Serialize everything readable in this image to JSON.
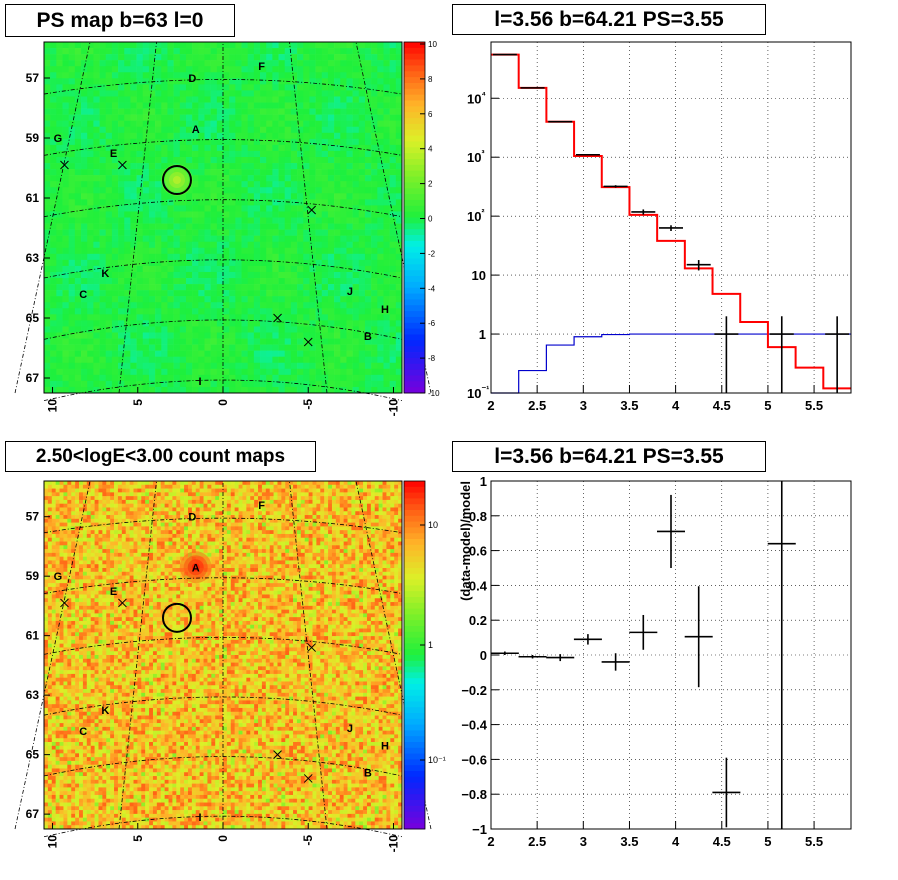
{
  "panels": {
    "ps_map": {
      "title": "PS map b=63 l=0",
      "palette": "rainbow",
      "colorbar_ticks": [
        "10",
        "8",
        "6",
        "4",
        "2",
        "0",
        "-2",
        "-4",
        "-6",
        "-8",
        "-10"
      ],
      "y_ticks": [
        "67",
        "65",
        "63",
        "61",
        "59",
        "57"
      ],
      "x_ticks": [
        "10",
        "5",
        "0",
        "-5",
        "-10"
      ],
      "source_labels": [
        "D",
        "F",
        "A",
        "G",
        "E",
        "K",
        "C",
        "J",
        "H",
        "B",
        "I"
      ]
    },
    "count_map": {
      "title": "2.50<logE<3.00 count maps",
      "palette": "rainbow-log",
      "colorbar_ticks": [
        "10",
        "1",
        "10⁻¹"
      ],
      "y_ticks": [
        "67",
        "65",
        "63",
        "61",
        "59",
        "57"
      ],
      "x_ticks": [
        "10",
        "5",
        "0",
        "-5",
        "-10"
      ],
      "source_labels": [
        "D",
        "F",
        "A",
        "G",
        "E",
        "K",
        "C",
        "J",
        "H",
        "B",
        "I"
      ]
    },
    "spectrum": {
      "title": "l=3.56 b=64.21 PS=3.55",
      "y_ticks": [
        "10⁴",
        "10³",
        "10²",
        "10",
        "1",
        "10⁻¹"
      ],
      "x_ticks": [
        "2",
        "2.5",
        "3",
        "3.5",
        "4",
        "4.5",
        "5",
        "5.5"
      ]
    },
    "residual": {
      "title": "l=3.56 b=64.21 PS=3.55",
      "ylabel": "(data-model)/model",
      "y_ticks": [
        "1",
        "0.8",
        "0.6",
        "0.4",
        "0.2",
        "0",
        "−0.2",
        "−0.4",
        "−0.6",
        "−0.8",
        "−1"
      ],
      "x_ticks": [
        "2",
        "2.5",
        "3",
        "3.5",
        "4",
        "4.5",
        "5",
        "5.5"
      ]
    }
  },
  "colors": {
    "model_total": "#ff0000",
    "model_source": "#0000cc",
    "data": "#000000",
    "ps_background": "#2cf03a",
    "count_background": "#f0a030"
  },
  "chart_data": [
    {
      "type": "heatmap",
      "title": "PS map b=63 l=0",
      "x_range": [
        10.5,
        -10.5
      ],
      "y_range": [
        56.5,
        68.2
      ],
      "colorbar_range": [
        -10,
        10
      ],
      "x_ticks": [
        10,
        5,
        0,
        -5,
        -10
      ],
      "y_ticks": [
        57,
        59,
        61,
        63,
        65,
        67
      ],
      "grid": true,
      "sources": [
        {
          "label": "D",
          "l": 1.8,
          "b": 67.0
        },
        {
          "label": "F",
          "l": -2.3,
          "b": 67.4
        },
        {
          "label": "A",
          "l": 1.6,
          "b": 65.3
        },
        {
          "label": "G",
          "l": 9.7,
          "b": 65.0
        },
        {
          "label": "E",
          "l": 6.4,
          "b": 64.5
        },
        {
          "label": "K",
          "l": 6.9,
          "b": 60.5
        },
        {
          "label": "C",
          "l": 8.2,
          "b": 59.8
        },
        {
          "label": "J",
          "l": -7.5,
          "b": 59.9
        },
        {
          "label": "H",
          "l": -9.5,
          "b": 59.3
        },
        {
          "label": "B",
          "l": -8.5,
          "b": 58.4
        },
        {
          "label": "I",
          "l": 1.2,
          "b": 56.9
        }
      ],
      "crosses": [
        {
          "l": 9.3,
          "b": 64.1
        },
        {
          "l": 5.9,
          "b": 64.1
        },
        {
          "l": -5.2,
          "b": 62.6
        },
        {
          "l": -3.2,
          "b": 59.0
        },
        {
          "l": -5.0,
          "b": 58.2
        }
      ],
      "circle": {
        "l": 2.7,
        "b": 63.6
      }
    },
    {
      "type": "heatmap",
      "title": "2.50<logE<3.00 count maps",
      "x_range": [
        10.5,
        -10.5
      ],
      "y_range": [
        56.5,
        68.2
      ],
      "colorbar_scale": "log",
      "colorbar_ticks": [
        10,
        1,
        0.1
      ],
      "x_ticks": [
        10,
        5,
        0,
        -5,
        -10
      ],
      "y_ticks": [
        57,
        59,
        61,
        63,
        65,
        67
      ],
      "grid": true,
      "sources": [
        {
          "label": "D",
          "l": 1.8,
          "b": 67.0
        },
        {
          "label": "F",
          "l": -2.3,
          "b": 67.4
        },
        {
          "label": "A",
          "l": 1.6,
          "b": 65.3
        },
        {
          "label": "G",
          "l": 9.7,
          "b": 65.0
        },
        {
          "label": "E",
          "l": 6.4,
          "b": 64.5
        },
        {
          "label": "K",
          "l": 6.9,
          "b": 60.5
        },
        {
          "label": "C",
          "l": 8.2,
          "b": 59.8
        },
        {
          "label": "J",
          "l": -7.5,
          "b": 59.9
        },
        {
          "label": "H",
          "l": -9.5,
          "b": 59.3
        },
        {
          "label": "B",
          "l": -8.5,
          "b": 58.4
        },
        {
          "label": "I",
          "l": 1.2,
          "b": 56.9
        }
      ],
      "crosses": [
        {
          "l": 9.3,
          "b": 64.1
        },
        {
          "l": 5.9,
          "b": 64.1
        },
        {
          "l": -5.2,
          "b": 62.6
        },
        {
          "l": -3.2,
          "b": 59.0
        },
        {
          "l": -5.0,
          "b": 58.2
        }
      ],
      "circle": {
        "l": 2.7,
        "b": 63.6
      }
    },
    {
      "type": "line",
      "title": "l=3.56 b=64.21 PS=3.55",
      "yscale": "log",
      "xlim": [
        2,
        5.9
      ],
      "ylim": [
        0.1,
        90000
      ],
      "grid": true,
      "series": [
        {
          "kind": "step",
          "bin_edges": [
            2.0,
            2.3,
            2.6,
            2.9,
            3.2,
            3.5,
            3.8,
            4.1,
            4.4,
            4.7,
            5.0,
            5.3,
            5.6,
            5.9
          ],
          "values": [
            55000,
            15000,
            4000,
            1050,
            310,
            105,
            38,
            13,
            4.8,
            1.6,
            0.6,
            0.27,
            0.12
          ]
        },
        {
          "kind": "step",
          "bin_edges": [
            2.0,
            2.3,
            2.6,
            2.9,
            3.2,
            3.5,
            3.8,
            4.1,
            4.4,
            4.7,
            5.0,
            5.3,
            5.6,
            5.9
          ],
          "values": [
            0.1,
            0.24,
            0.65,
            0.9,
            0.98,
            1.0,
            1.0,
            1.0,
            1.0,
            1.0,
            1.0,
            1.0,
            1.0
          ]
        },
        {
          "kind": "points",
          "x": [
            2.15,
            2.45,
            2.75,
            3.05,
            3.35,
            3.65,
            3.95,
            4.25,
            4.55,
            5.15,
            5.75
          ],
          "y": [
            55000,
            15000,
            4000,
            1100,
            320,
            118,
            63,
            15,
            1.0,
            1.0,
            1.0
          ],
          "yerr_low": [
            0,
            0,
            0,
            30,
            15,
            12,
            7,
            3,
            0.9,
            0.9,
            0.9
          ],
          "yerr_high": [
            0,
            0,
            0,
            30,
            15,
            12,
            7,
            3,
            1.0,
            1.0,
            1.0
          ]
        }
      ]
    },
    {
      "type": "scatter",
      "title": "l=3.56 b=64.21 PS=3.55",
      "xlabel": "",
      "ylabel": "(data-model)/model",
      "xlim": [
        2,
        5.9
      ],
      "ylim": [
        -1,
        1
      ],
      "grid": true,
      "series": [
        {
          "x": [
            2.15,
            2.45,
            2.75,
            3.05,
            3.35,
            3.65,
            3.95,
            4.25,
            4.55,
            5.15
          ],
          "y": [
            0.01,
            -0.01,
            -0.015,
            0.09,
            -0.04,
            0.13,
            0.71,
            0.105,
            -0.79,
            0.64
          ],
          "yerr": [
            0.01,
            0.01,
            0.02,
            0.03,
            0.05,
            0.1,
            0.21,
            0.29,
            0.2,
            0.36
          ]
        }
      ]
    }
  ]
}
